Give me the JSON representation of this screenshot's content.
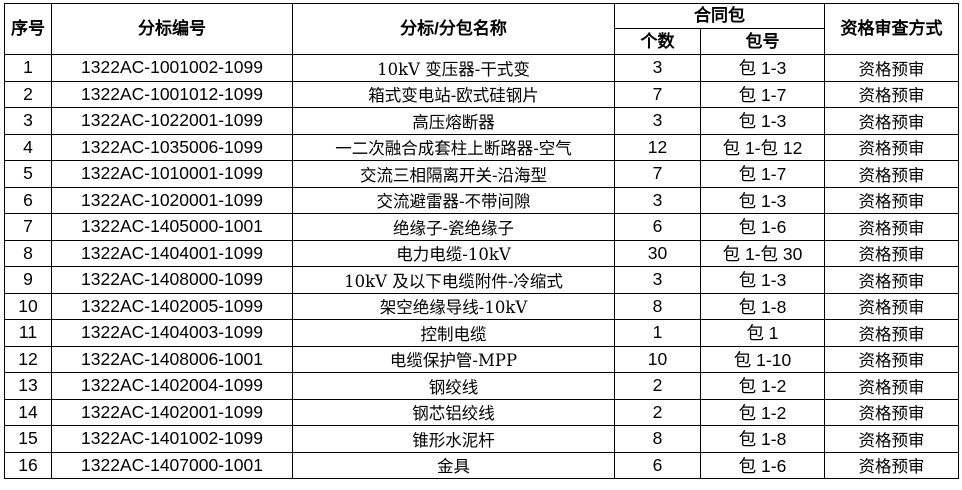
{
  "headers": {
    "seq": "序号",
    "code": "分标编号",
    "name": "分标/分包名称",
    "contract": "合同包",
    "count": "个数",
    "package": "包号",
    "review": "资格审查方式"
  },
  "rows": [
    {
      "seq": "1",
      "code": "1322AC-1001002-1099",
      "name": "10kV 变压器-干式变",
      "count": "3",
      "package": "包 1-3",
      "review": "资格预审"
    },
    {
      "seq": "2",
      "code": "1322AC-1001012-1099",
      "name": "箱式变电站-欧式硅钢片",
      "count": "7",
      "package": "包 1-7",
      "review": "资格预审"
    },
    {
      "seq": "3",
      "code": "1322AC-1022001-1099",
      "name": "高压熔断器",
      "count": "3",
      "package": "包 1-3",
      "review": "资格预审"
    },
    {
      "seq": "4",
      "code": "1322AC-1035006-1099",
      "name": "一二次融合成套柱上断路器-空气",
      "count": "12",
      "package": "包 1-包 12",
      "review": "资格预审"
    },
    {
      "seq": "5",
      "code": "1322AC-1010001-1099",
      "name": "交流三相隔离开关-沿海型",
      "count": "7",
      "package": "包 1-7",
      "review": "资格预审"
    },
    {
      "seq": "6",
      "code": "1322AC-1020001-1099",
      "name": "交流避雷器-不带间隙",
      "count": "3",
      "package": "包 1-3",
      "review": "资格预审"
    },
    {
      "seq": "7",
      "code": "1322AC-1405000-1001",
      "name": "绝缘子-瓷绝缘子",
      "count": "6",
      "package": "包 1-6",
      "review": "资格预审"
    },
    {
      "seq": "8",
      "code": "1322AC-1404001-1099",
      "name": "电力电缆-10kV",
      "count": "30",
      "package": "包 1-包 30",
      "review": "资格预审"
    },
    {
      "seq": "9",
      "code": "1322AC-1408000-1099",
      "name": "10kV 及以下电缆附件-冷缩式",
      "count": "3",
      "package": "包 1-3",
      "review": "资格预审"
    },
    {
      "seq": "10",
      "code": "1322AC-1402005-1099",
      "name": "架空绝缘导线-10kV",
      "count": "8",
      "package": "包 1-8",
      "review": "资格预审"
    },
    {
      "seq": "11",
      "code": "1322AC-1404003-1099",
      "name": "控制电缆",
      "count": "1",
      "package": "包 1",
      "review": "资格预审"
    },
    {
      "seq": "12",
      "code": "1322AC-1408006-1001",
      "name": "电缆保护管-MPP",
      "count": "10",
      "package": "包 1-10",
      "review": "资格预审"
    },
    {
      "seq": "13",
      "code": "1322AC-1402004-1099",
      "name": "钢绞线",
      "count": "2",
      "package": "包 1-2",
      "review": "资格预审"
    },
    {
      "seq": "14",
      "code": "1322AC-1402001-1099",
      "name": "钢芯铝绞线",
      "count": "2",
      "package": "包 1-2",
      "review": "资格预审"
    },
    {
      "seq": "15",
      "code": "1322AC-1401002-1099",
      "name": "锥形水泥杆",
      "count": "8",
      "package": "包 1-8",
      "review": "资格预审"
    },
    {
      "seq": "16",
      "code": "1322AC-1407000-1001",
      "name": "金具",
      "count": "6",
      "package": "包 1-6",
      "review": "资格预审"
    }
  ]
}
